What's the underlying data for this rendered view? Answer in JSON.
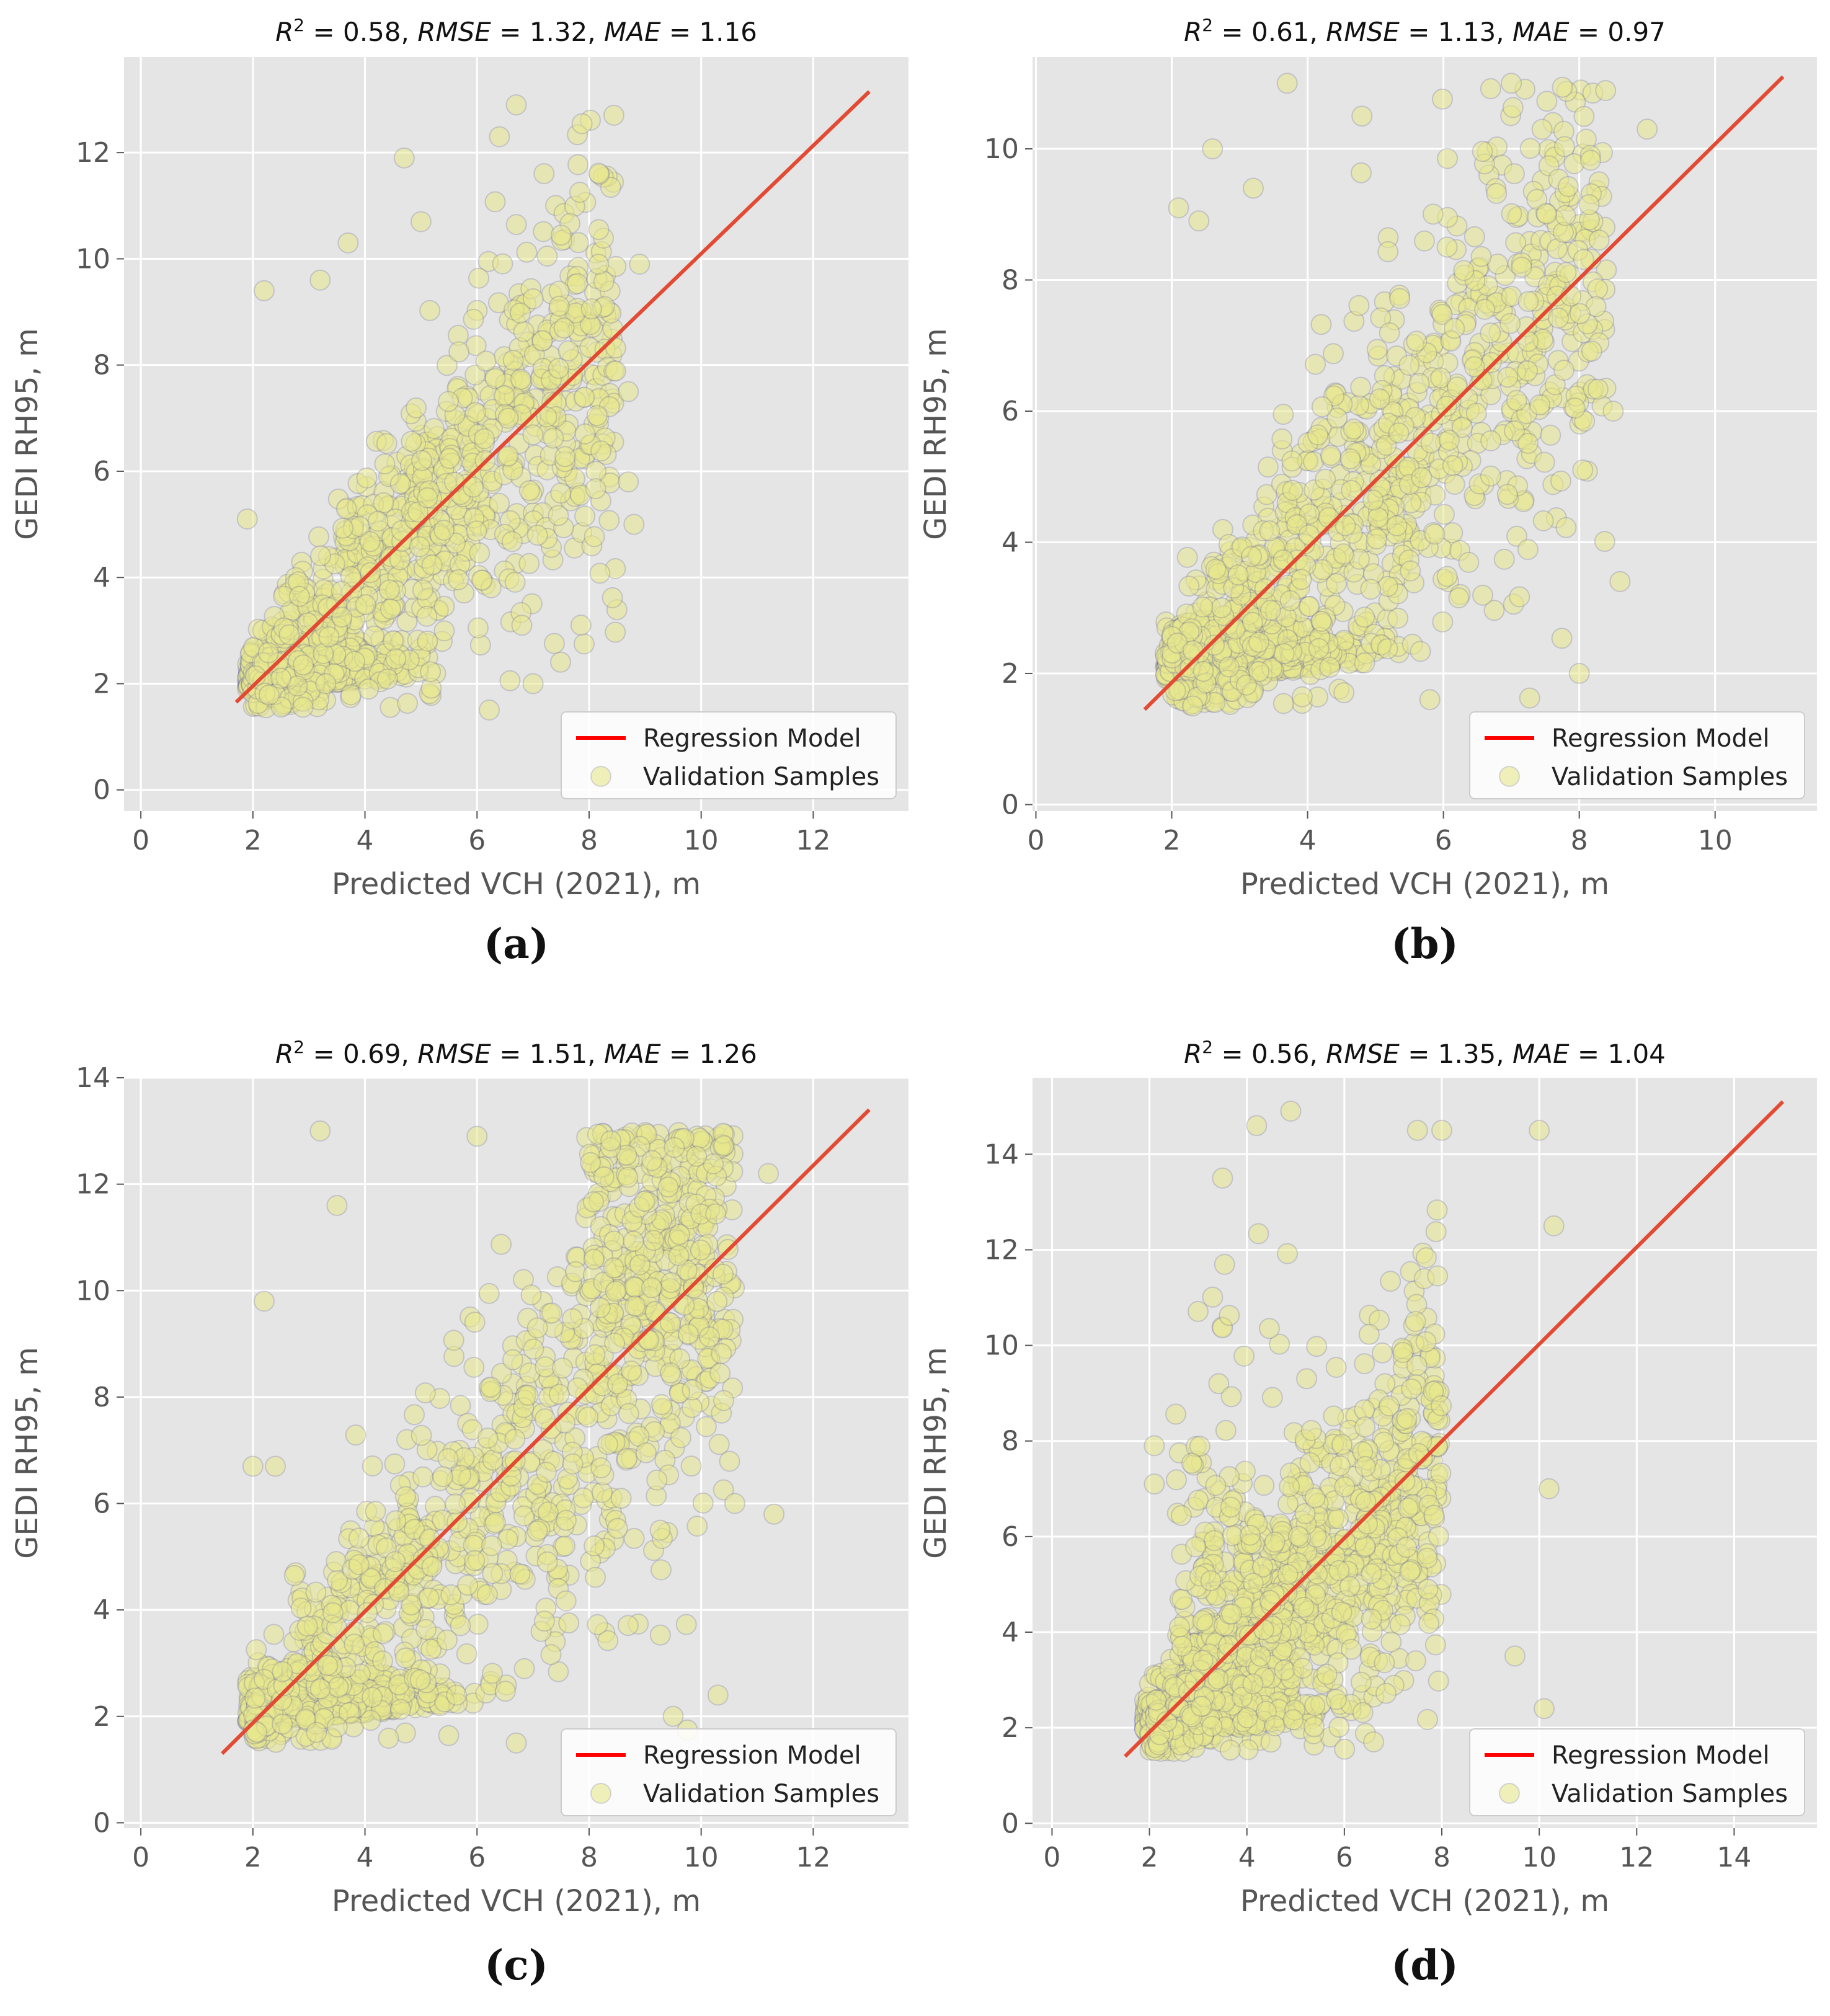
{
  "colors": {
    "plot_bg": "#e5e5e5",
    "grid": "#ffffff",
    "regression": "#e24a33",
    "legend_line": "#ff0000",
    "point_fill": "#e8e88e",
    "point_edge": "#4b4ba0",
    "dense_fill": "#a5a52a"
  },
  "chart_data": [
    {
      "type": "scatter",
      "panel": "a",
      "title_parts": {
        "r2": "0.58",
        "rmse": "1.32",
        "mae": "1.16"
      },
      "caption": "(a)",
      "xlabel": "Predicted VCH (2021), m",
      "ylabel": "GEDI RH95, m",
      "xlim": [
        -0.3,
        13.7
      ],
      "ylim": [
        -0.4,
        13.8
      ],
      "xticks": [
        0,
        2,
        4,
        6,
        8,
        10,
        12
      ],
      "yticks": [
        0,
        2,
        4,
        6,
        8,
        10,
        12
      ],
      "regression": {
        "x": [
          1.7,
          13.0
        ],
        "y": [
          1.65,
          13.15
        ]
      },
      "legend": {
        "position": "lower-right",
        "entries": [
          "Regression Model",
          "Validation Samples"
        ]
      },
      "seed": 11,
      "sample_points": [
        [
          1.9,
          5.1
        ],
        [
          2.2,
          9.4
        ],
        [
          3.2,
          9.6
        ],
        [
          3.7,
          10.3
        ],
        [
          4.7,
          11.9
        ],
        [
          6.7,
          12.9
        ],
        [
          8.9,
          9.9
        ],
        [
          8.7,
          7.5
        ],
        [
          8.7,
          5.8
        ],
        [
          8.8,
          5.0
        ],
        [
          7.0,
          2.0
        ],
        [
          6.8,
          3.1
        ],
        [
          2.5,
          2.1
        ],
        [
          3.3,
          2.0
        ],
        [
          5.0,
          10.7
        ],
        [
          6.4,
          12.3
        ]
      ]
    },
    {
      "type": "scatter",
      "panel": "b",
      "title_parts": {
        "r2": "0.61",
        "rmse": "1.13",
        "mae": "0.97"
      },
      "caption": "(b)",
      "xlabel": "Predicted VCH (2021), m",
      "ylabel": "GEDI RH95, m",
      "xlim": [
        -0.05,
        11.5
      ],
      "ylim": [
        -0.1,
        11.4
      ],
      "xticks": [
        0,
        2,
        4,
        6,
        8,
        10
      ],
      "yticks": [
        0,
        2,
        4,
        6,
        8,
        10
      ],
      "regression": {
        "x": [
          1.6,
          11.0
        ],
        "y": [
          1.45,
          11.1
        ]
      },
      "legend": {
        "position": "lower-right",
        "entries": [
          "Regression Model",
          "Validation Samples"
        ]
      },
      "seed": 23,
      "sample_points": [
        [
          2.1,
          9.1
        ],
        [
          2.6,
          10.0
        ],
        [
          3.7,
          11.0
        ],
        [
          4.8,
          10.5
        ],
        [
          7.0,
          11.0
        ],
        [
          9.0,
          10.3
        ],
        [
          8.6,
          3.4
        ],
        [
          5.8,
          1.6
        ],
        [
          8.0,
          2.0
        ],
        [
          3.2,
          9.4
        ],
        [
          2.4,
          8.9
        ],
        [
          8.5,
          6.0
        ]
      ]
    },
    {
      "type": "scatter",
      "panel": "c",
      "title_parts": {
        "r2": "0.69",
        "rmse": "1.51",
        "mae": "1.26"
      },
      "caption": "(c)",
      "xlabel": "Predicted VCH (2021), m",
      "ylabel": "GEDI RH95, m",
      "xlim": [
        -0.3,
        13.7
      ],
      "ylim": [
        -0.1,
        14.0
      ],
      "xticks": [
        0,
        2,
        4,
        6,
        8,
        10,
        12
      ],
      "yticks": [
        0,
        2,
        4,
        6,
        8,
        10,
        12,
        14
      ],
      "regression": {
        "x": [
          1.45,
          13.0
        ],
        "y": [
          1.3,
          13.4
        ]
      },
      "legend": {
        "position": "lower-right",
        "entries": [
          "Regression Model",
          "Validation Samples"
        ]
      },
      "seed": 37,
      "sample_points": [
        [
          3.2,
          13.0
        ],
        [
          2.2,
          9.8
        ],
        [
          2.0,
          6.7
        ],
        [
          2.4,
          6.7
        ],
        [
          11.3,
          5.8
        ],
        [
          10.6,
          6.0
        ],
        [
          10.3,
          2.4
        ],
        [
          9.5,
          2.0
        ],
        [
          6.7,
          1.5
        ],
        [
          11.2,
          12.2
        ],
        [
          6.0,
          12.9
        ],
        [
          3.5,
          11.6
        ]
      ]
    },
    {
      "type": "scatter",
      "panel": "d",
      "title_parts": {
        "r2": "0.56",
        "rmse": "1.35",
        "mae": "1.04"
      },
      "caption": "(d)",
      "xlabel": "Predicted VCH (2021), m",
      "ylabel": "GEDI RH95, m",
      "xlim": [
        -0.4,
        15.7
      ],
      "ylim": [
        -0.1,
        15.6
      ],
      "xticks": [
        0,
        2,
        4,
        6,
        8,
        10,
        12,
        14
      ],
      "yticks": [
        0,
        2,
        4,
        6,
        8,
        10,
        12,
        14
      ],
      "regression": {
        "x": [
          1.5,
          15.0
        ],
        "y": [
          1.4,
          15.1
        ]
      },
      "legend": {
        "position": "lower-right",
        "entries": [
          "Regression Model",
          "Validation Samples"
        ]
      },
      "seed": 53,
      "sample_points": [
        [
          4.9,
          14.9
        ],
        [
          4.2,
          14.6
        ],
        [
          3.5,
          13.5
        ],
        [
          7.5,
          14.5
        ],
        [
          10.0,
          14.5
        ],
        [
          10.3,
          12.5
        ],
        [
          10.2,
          7.0
        ],
        [
          10.1,
          2.4
        ],
        [
          9.5,
          3.5
        ],
        [
          2.1,
          7.1
        ],
        [
          2.1,
          7.9
        ],
        [
          8.0,
          14.5
        ]
      ]
    }
  ]
}
